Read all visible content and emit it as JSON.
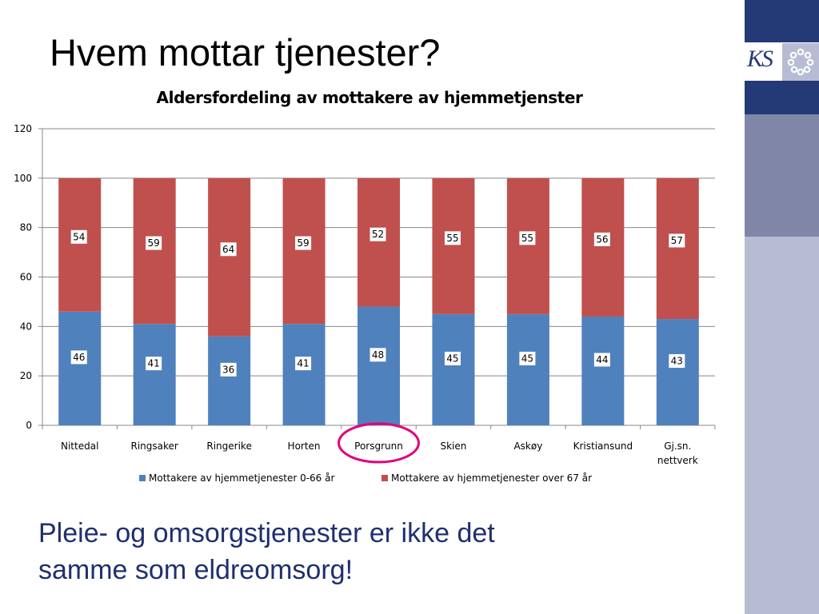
{
  "slide": {
    "title": "Hvem mottar tjenester?",
    "subtext_line1": "Pleie- og omsorgstjenester er ikke det",
    "subtext_line2": "samme som eldreomsorg!",
    "logo_text": "KS"
  },
  "colors": {
    "series_young": "#4f81bd",
    "series_old": "#c0504d",
    "highlight_circle": "#e0007a",
    "band_dark": "#243a76",
    "band_mid": "#8086a8",
    "band_light": "#b7bcd2",
    "subtext": "#1f2f6e"
  },
  "chart_data": {
    "type": "bar",
    "stacked": true,
    "title": "Aldersfordeling av mottakere av  hjemmetjenster",
    "categories": [
      "Nittedal",
      "Ringsaker",
      "Ringerike",
      "Horten",
      "Porsgrunn",
      "Skien",
      "Askøy",
      "Kristiansund",
      "Gj.sn. nettverk"
    ],
    "series": [
      {
        "name": "Mottakere av hjemmetjenester 0-66 år",
        "values": [
          46,
          41,
          36,
          41,
          48,
          45,
          45,
          44,
          43
        ]
      },
      {
        "name": "Mottakere av hjemmetjenester over 67 år",
        "values": [
          54,
          59,
          64,
          59,
          52,
          55,
          55,
          56,
          57
        ]
      }
    ],
    "ylim": [
      0,
      120
    ],
    "yticks": [
      0,
      20,
      40,
      60,
      80,
      100,
      120
    ],
    "grid": true,
    "legend_position": "bottom",
    "highlighted_category": "Porsgrunn"
  }
}
